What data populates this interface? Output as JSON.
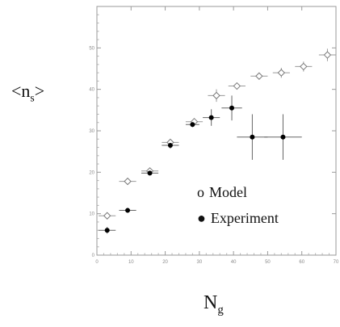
{
  "chart_data": {
    "type": "scatter",
    "title": "",
    "ylabel": {
      "open": "<n",
      "sub": "s",
      "close": ">"
    },
    "xlabel": {
      "main": "N",
      "sub": "g"
    },
    "xlim": [
      0,
      70
    ],
    "ylim": [
      0,
      60
    ],
    "x_ticks": [
      "0",
      "10",
      "20",
      "30",
      "40",
      "50",
      "60",
      "70"
    ],
    "y_ticks": [
      "0",
      "10",
      "20",
      "30",
      "40",
      "50"
    ],
    "legend_position": "lower-right",
    "series": [
      {
        "name": "Model",
        "marker": "open-diamond",
        "color": "#9a9a9a",
        "points": [
          {
            "x": 3,
            "y": 9.5,
            "xerr": 2.5,
            "yerr": 0.8
          },
          {
            "x": 9,
            "y": 17.8,
            "xerr": 2.5,
            "yerr": 0.6
          },
          {
            "x": 15.5,
            "y": 20.3,
            "xerr": 2.5,
            "yerr": 0.6
          },
          {
            "x": 21.5,
            "y": 27.2,
            "xerr": 2.5,
            "yerr": 0.6
          },
          {
            "x": 28.5,
            "y": 32.2,
            "xerr": 2.5,
            "yerr": 0.6
          },
          {
            "x": 35,
            "y": 38.5,
            "xerr": 2.5,
            "yerr": 1.5
          },
          {
            "x": 41,
            "y": 40.8,
            "xerr": 2.5,
            "yerr": 0.8
          },
          {
            "x": 47.5,
            "y": 43.2,
            "xerr": 2.5,
            "yerr": 0.8
          },
          {
            "x": 54,
            "y": 44.0,
            "xerr": 2.5,
            "yerr": 1.2
          },
          {
            "x": 60.5,
            "y": 45.5,
            "xerr": 2.5,
            "yerr": 1.2
          },
          {
            "x": 67.5,
            "y": 48.3,
            "xerr": 2.5,
            "yerr": 1.5
          }
        ]
      },
      {
        "name": "Experiment",
        "marker": "filled-circle",
        "color": "#000000",
        "points": [
          {
            "x": 3,
            "y": 6.0,
            "xerr": 2.5,
            "yerr": 0.8
          },
          {
            "x": 9,
            "y": 10.8,
            "xerr": 2.5,
            "yerr": 0.6
          },
          {
            "x": 15.5,
            "y": 19.8,
            "xerr": 2.5,
            "yerr": 0.6
          },
          {
            "x": 21.5,
            "y": 26.5,
            "xerr": 2.5,
            "yerr": 0.8
          },
          {
            "x": 28,
            "y": 31.5,
            "xerr": 2.0,
            "yerr": 0.6
          },
          {
            "x": 33.5,
            "y": 33.2,
            "xerr": 2.5,
            "yerr": 2.0
          },
          {
            "x": 39.5,
            "y": 35.5,
            "xerr": 3.0,
            "yerr": 3.0
          },
          {
            "x": 45.5,
            "y": 28.5,
            "xerr": 4.5,
            "yerr": 5.5
          },
          {
            "x": 54.5,
            "y": 28.5,
            "xerr": 5.5,
            "yerr": 5.5
          }
        ]
      }
    ]
  },
  "legend": {
    "model_glyph": "o",
    "model_label": "Model",
    "experiment_glyph": "●",
    "experiment_label": "Experiment"
  }
}
